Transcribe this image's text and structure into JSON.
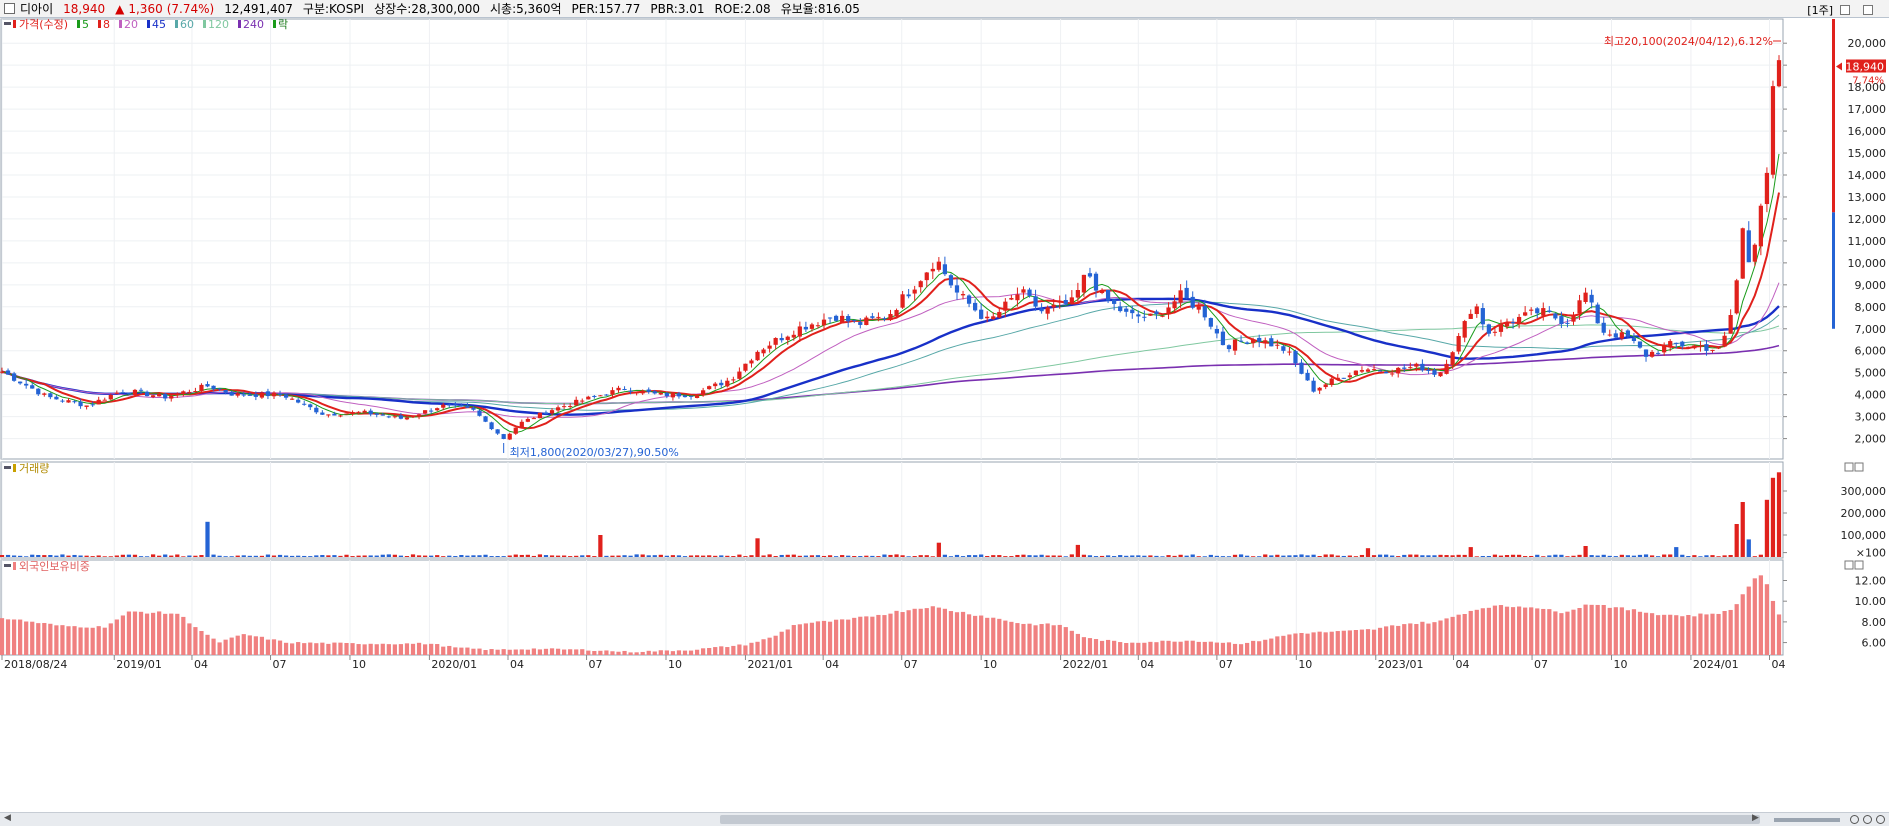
{
  "header": {
    "name": "디아이",
    "price": "18,940",
    "change_arrow": "▲",
    "change": "1,360",
    "change_pct": "(7.74%)",
    "volume": "12,491,407",
    "market": "구분:KOSPI",
    "shares": "상장수:28,300,000",
    "marketcap": "시총:5,360억",
    "per": "PER:157.77",
    "pbr": "PBR:3.01",
    "roe": "ROE:2.08",
    "retention": "유보율:816.05",
    "period": "[1주]"
  },
  "colors": {
    "up": "#e0211c",
    "down": "#2463d4",
    "ma5": "#1a9b1a",
    "ma8": "#e0211c",
    "ma20": "#c060c0",
    "ma45": "#1830c8",
    "ma60": "#58a8a8",
    "ma120": "#80c8a0",
    "ma240": "#7a30b0",
    "foreign": "#f08080"
  },
  "legend": {
    "price": "가격(수정)",
    "ma": [
      {
        "label": "5",
        "color": "#1a9b1a"
      },
      {
        "label": "8",
        "color": "#e0211c"
      },
      {
        "label": "20",
        "color": "#c060c0"
      },
      {
        "label": "45",
        "color": "#1830c8"
      },
      {
        "label": "60",
        "color": "#58a8a8"
      },
      {
        "label": "120",
        "color": "#80c8a0"
      },
      {
        "label": "240",
        "color": "#7a30b0"
      }
    ],
    "rak": "락"
  },
  "annotations": {
    "high": "최고20,100(2024/04/12),6.12%",
    "low": "최저1,800(2020/03/27),90.50%",
    "last_price": "18,940",
    "last_pct": "7.74%"
  },
  "chart_data": [
    {
      "type": "candlestick",
      "title": "가격(수정)",
      "period": "weekly",
      "x_start": "2018/08/24",
      "x_end": "2024/04/12",
      "x_tick_labels": [
        "2018/08/24",
        "2019/01",
        "04",
        "07",
        "10",
        "2020/01",
        "04",
        "07",
        "10",
        "2021/01",
        "04",
        "07",
        "10",
        "2022/01",
        "04",
        "07",
        "10",
        "2023/01",
        "04",
        "07",
        "10",
        "2024/01",
        "04"
      ],
      "y_tick_labels": [
        "2,000",
        "3,000",
        "4,000",
        "5,000",
        "6,000",
        "7,000",
        "8,000",
        "9,000",
        "10,000",
        "11,000",
        "12,000",
        "13,000",
        "14,000",
        "15,000",
        "16,000",
        "17,000",
        "18,000",
        "19,000",
        "20,000"
      ],
      "ylim": [
        1300,
        21500
      ],
      "close_path": [
        [
          "2018-08-24",
          5050
        ],
        [
          "2018-10-15",
          3900
        ],
        [
          "2018-12-01",
          3500
        ],
        [
          "2019-01-10",
          4200
        ],
        [
          "2019-03-01",
          3900
        ],
        [
          "2019-04-20",
          4400
        ],
        [
          "2019-05-20",
          4000
        ],
        [
          "2019-07-15",
          4000
        ],
        [
          "2019-09-01",
          3100
        ],
        [
          "2019-10-15",
          3200
        ],
        [
          "2019-12-01",
          2900
        ],
        [
          "2020-01-15",
          3500
        ],
        [
          "2020-02-20",
          3300
        ],
        [
          "2020-03-27",
          2000
        ],
        [
          "2020-04-15",
          2700
        ],
        [
          "2020-05-20",
          3300
        ],
        [
          "2020-07-01",
          3800
        ],
        [
          "2020-08-15",
          4300
        ],
        [
          "2020-09-20",
          4000
        ],
        [
          "2020-11-01",
          4000
        ],
        [
          "2020-12-15",
          4700
        ],
        [
          "2021-01-15",
          6000
        ],
        [
          "2021-03-01",
          7000
        ],
        [
          "2021-04-15",
          7600
        ],
        [
          "2021-05-10",
          7200
        ],
        [
          "2021-06-15",
          7600
        ],
        [
          "2021-07-20",
          9200
        ],
        [
          "2021-08-10",
          10200
        ],
        [
          "2021-09-01",
          8700
        ],
        [
          "2021-10-10",
          7300
        ],
        [
          "2021-11-15",
          8700
        ],
        [
          "2021-12-10",
          7800
        ],
        [
          "2022-01-15",
          8200
        ],
        [
          "2022-02-01",
          9600
        ],
        [
          "2022-02-20",
          8400
        ],
        [
          "2022-03-20",
          7600
        ],
        [
          "2022-04-20",
          7500
        ],
        [
          "2022-05-20",
          8500
        ],
        [
          "2022-06-15",
          7800
        ],
        [
          "2022-07-10",
          6200
        ],
        [
          "2022-08-15",
          6600
        ],
        [
          "2022-09-20",
          6000
        ],
        [
          "2022-10-20",
          4200
        ],
        [
          "2022-11-15",
          4700
        ],
        [
          "2022-12-15",
          5200
        ],
        [
          "2023-01-20",
          5100
        ],
        [
          "2023-02-20",
          5300
        ],
        [
          "2023-03-15",
          4900
        ],
        [
          "2023-04-10",
          6800
        ],
        [
          "2023-04-25",
          8300
        ],
        [
          "2023-05-10",
          6800
        ],
        [
          "2023-06-10",
          7400
        ],
        [
          "2023-07-10",
          7800
        ],
        [
          "2023-08-10",
          7300
        ],
        [
          "2023-09-01",
          8600
        ],
        [
          "2023-09-20",
          6900
        ],
        [
          "2023-10-20",
          6600
        ],
        [
          "2023-11-10",
          5800
        ],
        [
          "2023-12-10",
          6300
        ],
        [
          "2024-01-10",
          6200
        ],
        [
          "2024-02-05",
          6000
        ],
        [
          "2024-02-20",
          8200
        ],
        [
          "2024-03-01",
          11500
        ],
        [
          "2024-03-10",
          9700
        ],
        [
          "2024-03-20",
          12500
        ],
        [
          "2024-03-29",
          14200
        ],
        [
          "2024-04-05",
          17600
        ],
        [
          "2024-04-12",
          18940
        ]
      ],
      "series": [
        {
          "name": "5",
          "values_path": "smoothed close, 5-week"
        },
        {
          "name": "8",
          "values_path": "smoothed close, 8-week"
        },
        {
          "name": "20",
          "values_path": "smoothed close, 20-week"
        },
        {
          "name": "45",
          "values_path": "smoothed close, 45-week"
        },
        {
          "name": "60",
          "values_path": "smoothed close, 60-week"
        },
        {
          "name": "120",
          "values_path": "smoothed close, 120-week"
        },
        {
          "name": "240",
          "values_path": "smoothed close, 240-week"
        }
      ],
      "high": {
        "value": 20100,
        "date": "2024/04/12"
      },
      "low": {
        "value": 1800,
        "date": "2020/03/27"
      }
    },
    {
      "type": "bar",
      "title": "거래량",
      "y_tick_labels": [
        "300,000",
        "200,000",
        "100,000",
        "×100"
      ],
      "ylim": [
        0,
        400000
      ],
      "unit": "×100",
      "spikes": [
        [
          "2019-04-20",
          160000
        ],
        [
          "2020-07-15",
          100000
        ],
        [
          "2021-01-15",
          85000
        ],
        [
          "2021-08-10",
          65000
        ],
        [
          "2022-01-20",
          55000
        ],
        [
          "2022-12-20",
          40000
        ],
        [
          "2023-04-20",
          45000
        ],
        [
          "2023-09-01",
          50000
        ],
        [
          "2023-12-15",
          45000
        ],
        [
          "2024-02-20",
          150000
        ],
        [
          "2024-03-01",
          250000
        ],
        [
          "2024-03-10",
          80000
        ],
        [
          "2024-03-29",
          260000
        ],
        [
          "2024-04-05",
          360000
        ],
        [
          "2024-04-12",
          385000
        ]
      ],
      "base": 10000
    },
    {
      "type": "bar",
      "title": "외국인보유비중",
      "y_tick_labels": [
        "12.00",
        "10.00",
        "8.00",
        "6.00"
      ],
      "ylim": [
        4.8,
        13.4
      ],
      "values_path": [
        [
          "2018-08-24",
          8.4
        ],
        [
          "2018-11-01",
          7.6
        ],
        [
          "2018-12-20",
          7.5
        ],
        [
          "2019-01-20",
          9.0
        ],
        [
          "2019-03-15",
          8.8
        ],
        [
          "2019-05-01",
          6.0
        ],
        [
          "2019-06-01",
          6.8
        ],
        [
          "2019-07-20",
          6.0
        ],
        [
          "2019-10-01",
          5.9
        ],
        [
          "2020-01-01",
          5.9
        ],
        [
          "2020-02-01",
          5.5
        ],
        [
          "2020-03-15",
          5.3
        ],
        [
          "2020-05-01",
          5.4
        ],
        [
          "2020-07-01",
          5.3
        ],
        [
          "2020-08-20",
          5.1
        ],
        [
          "2020-11-01",
          5.3
        ],
        [
          "2021-01-01",
          5.8
        ],
        [
          "2021-02-01",
          6.5
        ],
        [
          "2021-03-01",
          7.8
        ],
        [
          "2021-05-01",
          8.2
        ],
        [
          "2021-08-01",
          9.5
        ],
        [
          "2021-10-01",
          8.6
        ],
        [
          "2021-11-20",
          7.8
        ],
        [
          "2022-01-01",
          7.7
        ],
        [
          "2022-02-01",
          6.4
        ],
        [
          "2022-03-15",
          6.0
        ],
        [
          "2022-06-01",
          6.2
        ],
        [
          "2022-08-01",
          5.9
        ],
        [
          "2022-10-01",
          6.9
        ],
        [
          "2022-12-01",
          7.1
        ],
        [
          "2023-01-01",
          7.3
        ],
        [
          "2023-02-01",
          7.8
        ],
        [
          "2023-03-15",
          8.0
        ],
        [
          "2023-04-10",
          8.8
        ],
        [
          "2023-05-10",
          9.5
        ],
        [
          "2023-07-01",
          9.5
        ],
        [
          "2023-08-01",
          8.9
        ],
        [
          "2023-09-10",
          9.8
        ],
        [
          "2023-10-10",
          9.3
        ],
        [
          "2023-12-01",
          8.7
        ],
        [
          "2024-01-01",
          8.6
        ],
        [
          "2024-02-15",
          9.0
        ],
        [
          "2024-03-01",
          10.6
        ],
        [
          "2024-03-20",
          12.9
        ],
        [
          "2024-04-01",
          11.0
        ],
        [
          "2024-04-12",
          8.6
        ]
      ]
    }
  ],
  "panels": {
    "volume_label": "거래량",
    "foreign_label": "외국인보유비중"
  }
}
